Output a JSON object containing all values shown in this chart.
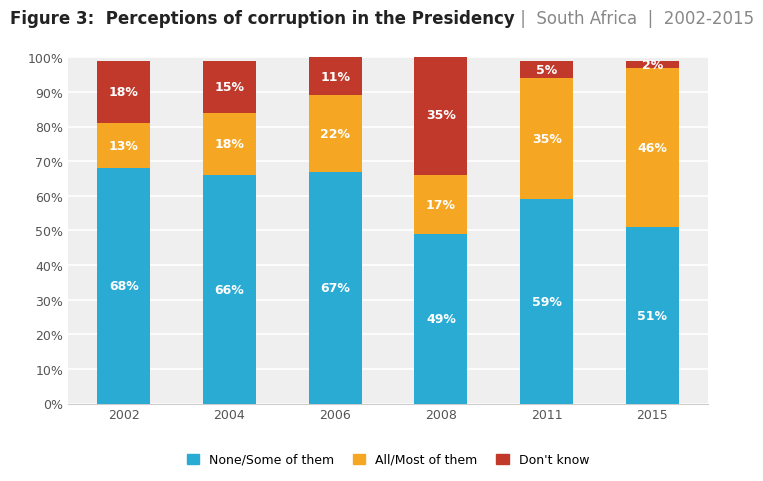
{
  "title_bold": "Figure 3:  Perceptions of corruption in the Presidency",
  "title_normal": " |  South Africa  |  2002-2015",
  "categories": [
    "2002",
    "2004",
    "2006",
    "2008",
    "2011",
    "2015"
  ],
  "none_some": [
    68,
    66,
    67,
    49,
    59,
    51
  ],
  "all_most": [
    13,
    18,
    22,
    17,
    35,
    46
  ],
  "dont_know": [
    18,
    15,
    11,
    35,
    5,
    2
  ],
  "color_none_some": "#29ABD4",
  "color_all_most": "#F5A623",
  "color_dont_know": "#C0392B",
  "legend_labels": [
    "None/Some of them",
    "All/Most of them",
    "Don't know"
  ],
  "background_color": "#FFFFFF",
  "plot_bg_color": "#EFEFEF",
  "bar_width": 0.5,
  "title_fontsize": 12,
  "label_fontsize": 9,
  "tick_fontsize": 9,
  "legend_fontsize": 9
}
